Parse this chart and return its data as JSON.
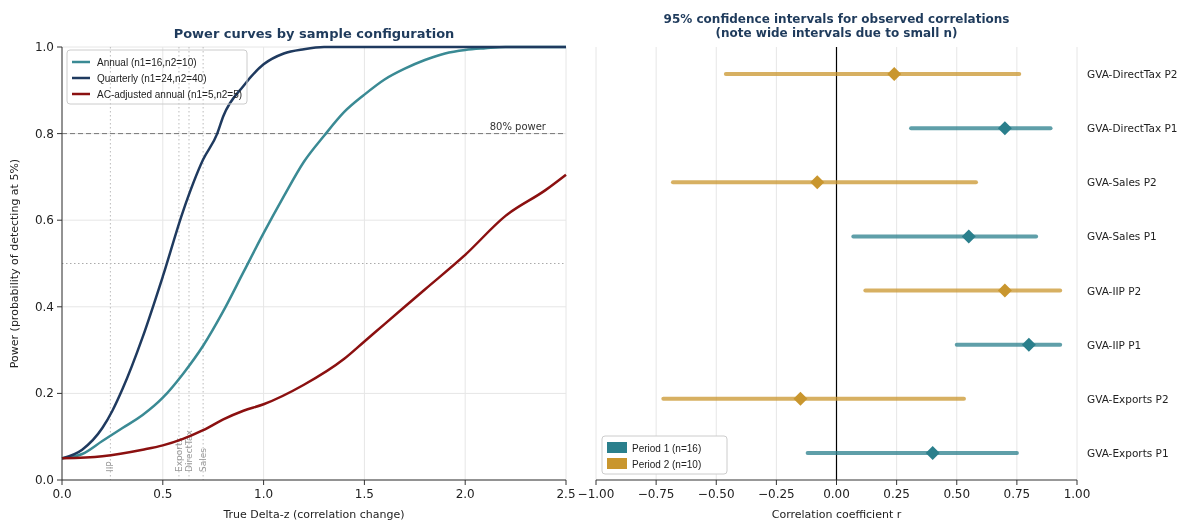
{
  "chart_data": [
    {
      "type": "line",
      "title": "Power curves by sample configuration",
      "xlabel": "True Delta-z (correlation change)",
      "ylabel": "Power (probability of detecting at 5%)",
      "xlim": [
        0,
        2.5
      ],
      "ylim": [
        0,
        1
      ],
      "xticks": [
        {
          "value": 0,
          "label": "0.0"
        },
        0.5,
        {
          "value": 1,
          "label": "1.0"
        },
        1.5,
        {
          "value": 2,
          "label": "2.0"
        },
        2.5
      ],
      "yticks": [
        {
          "value": 0,
          "label": "0.0"
        },
        0.2,
        0.4,
        0.6,
        0.8,
        {
          "value": 1,
          "label": "1.0"
        }
      ],
      "grid": true,
      "legend": "top left",
      "line_style": "solid",
      "marker": "none",
      "series": [
        {
          "name": "Annual (n1=16,n2=10)",
          "color": "#3a8a94",
          "x": [
            0,
            0.1,
            0.2,
            0.3,
            0.4,
            0.5,
            0.6,
            0.7,
            0.8,
            0.9,
            1.0,
            1.1,
            1.2,
            1.3,
            1.4,
            1.5,
            1.6,
            1.7,
            1.8,
            1.9,
            2.0,
            2.1,
            2.2,
            2.5
          ],
          "values": [
            0.05,
            0.06,
            0.09,
            0.12,
            0.15,
            0.19,
            0.245,
            0.31,
            0.39,
            0.48,
            0.57,
            0.655,
            0.735,
            0.795,
            0.85,
            0.89,
            0.925,
            0.95,
            0.97,
            0.985,
            0.993,
            0.997,
            1.0,
            1.0
          ]
        },
        {
          "name": "Quarterly (n1=24,n2=40)",
          "color": "#1f3a5f",
          "x": [
            0,
            0.1,
            0.2,
            0.25,
            0.3,
            0.4,
            0.5,
            0.6,
            0.7,
            0.77,
            0.8,
            0.9,
            1.0,
            1.1,
            1.2,
            1.3,
            2.5
          ],
          "values": [
            0.05,
            0.07,
            0.12,
            0.16,
            0.21,
            0.33,
            0.47,
            0.62,
            0.74,
            0.8,
            0.84,
            0.91,
            0.96,
            0.985,
            0.995,
            1.0,
            1.0
          ]
        },
        {
          "name": "AC-adjusted annual (n1=5,n2=5)",
          "color": "#8b1010",
          "x": [
            0,
            0.2,
            0.4,
            0.5,
            0.6,
            0.7,
            0.8,
            0.9,
            1.0,
            1.2,
            1.4,
            1.5,
            1.6,
            1.8,
            2.0,
            2.2,
            2.4,
            2.5
          ],
          "values": [
            0.05,
            0.055,
            0.07,
            0.08,
            0.095,
            0.115,
            0.14,
            0.16,
            0.175,
            0.22,
            0.28,
            0.32,
            0.36,
            0.44,
            0.52,
            0.61,
            0.67,
            0.705
          ]
        }
      ],
      "ref_lines": [
        {
          "axis": "y",
          "value": 0.8,
          "label": "80% power",
          "color": "#777777",
          "line_style": "dashed"
        },
        {
          "axis": "y",
          "value": 0.5,
          "label": null,
          "color": "#aaaaaa",
          "line_style": "dotted"
        },
        {
          "axis": "x",
          "value": 0.24,
          "label": "IIP",
          "color": "#bbbbbb",
          "line_style": "dotted"
        },
        {
          "axis": "x",
          "value": 0.58,
          "label": "Exports",
          "color": "#bbbbbb",
          "line_style": "dotted"
        },
        {
          "axis": "x",
          "value": 0.63,
          "label": "DirectTax",
          "color": "#bbbbbb",
          "line_style": "dotted"
        },
        {
          "axis": "x",
          "value": 0.7,
          "label": "Sales",
          "color": "#bbbbbb",
          "line_style": "dotted"
        }
      ]
    },
    {
      "type": "scatter",
      "orientation": "horizontal",
      "title": "95% confidence intervals for observed correlations\n(note wide intervals due to small n)",
      "xlabel": "Correlation coefficient r",
      "categories": [
        "GVA-DirectTax P2",
        "GVA-DirectTax P1",
        "GVA-Sales P2",
        "GVA-Sales P1",
        "GVA-IIP P2",
        "GVA-IIP P1",
        "GVA-Exports P2",
        "GVA-Exports P1"
      ],
      "xlim": [
        -1,
        1
      ],
      "xticks": [
        {
          "value": -1,
          "label": "−1.00"
        },
        {
          "value": -0.75,
          "label": "−0.75"
        },
        {
          "value": -0.5,
          "label": "−0.50"
        },
        {
          "value": -0.25,
          "label": "−0.25"
        },
        {
          "value": 0,
          "label": "0.00"
        },
        {
          "value": 0.25,
          "label": "0.25"
        },
        {
          "value": 0.5,
          "label": "0.50"
        },
        {
          "value": 0.75,
          "label": "0.75"
        },
        {
          "value": 1,
          "label": "1.00"
        }
      ],
      "grid": "x",
      "legend": "bottom left",
      "marker": "diamond",
      "series": [
        {
          "name": "Period 1 (n=16)",
          "color": "#2a7f8c",
          "values": [
            null,
            0.7,
            null,
            0.55,
            null,
            0.8,
            null,
            0.4
          ],
          "errors": [
            null,
            [
              0.31,
              0.89
            ],
            null,
            [
              0.07,
              0.83
            ],
            null,
            [
              0.5,
              0.93
            ],
            null,
            [
              -0.12,
              0.75
            ]
          ]
        },
        {
          "name": "Period 2 (n=10)",
          "color": "#c9962e",
          "values": [
            0.24,
            null,
            -0.08,
            null,
            0.7,
            null,
            -0.15,
            null
          ],
          "errors": [
            [
              -0.46,
              0.76
            ],
            null,
            [
              -0.68,
              0.58
            ],
            null,
            [
              0.12,
              0.93
            ],
            null,
            [
              -0.72,
              0.53
            ],
            null
          ]
        }
      ],
      "ref_lines": [
        {
          "axis": "x",
          "value": 0,
          "label": null,
          "color": "#000000",
          "line_style": "solid"
        }
      ]
    }
  ]
}
